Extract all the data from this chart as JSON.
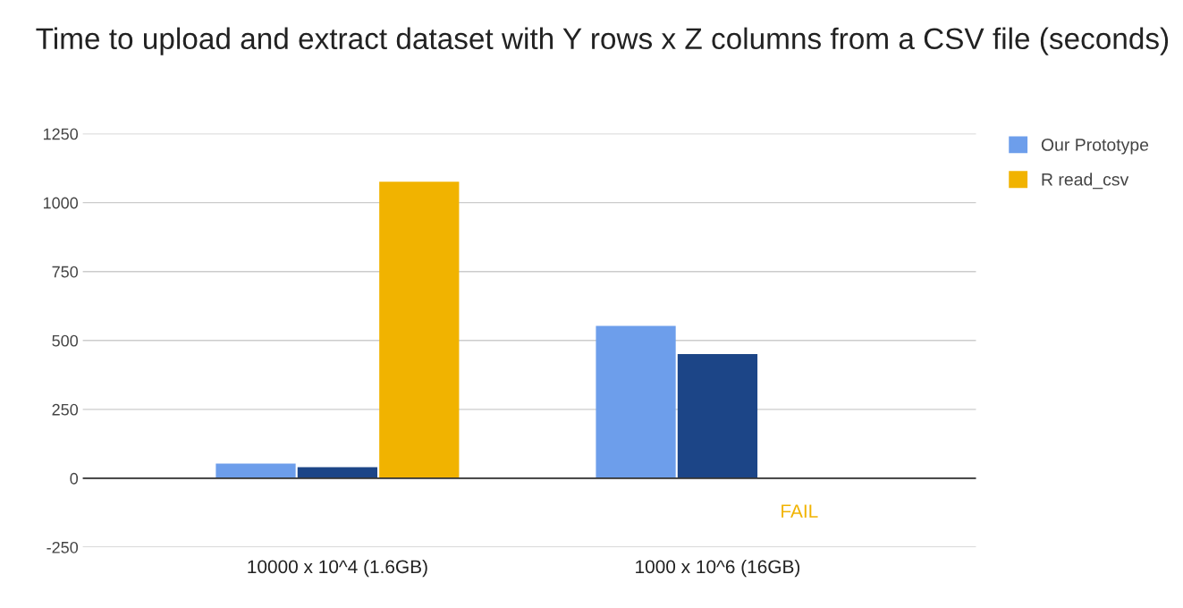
{
  "chart_data": {
    "type": "bar",
    "title": "Time to upload and extract dataset with Y rows x Z columns from a CSV file (seconds)",
    "categories": [
      "10000 x 10^4 (1.6GB)",
      "1000 x 10^6 (16GB)"
    ],
    "series": [
      {
        "name": "Our Prototype",
        "color": "#6d9eeb",
        "values": [
          53,
          553
        ]
      },
      {
        "color": "#1c4587",
        "values": [
          40,
          451
        ]
      },
      {
        "name": "R read_csv",
        "color": "#f1b300",
        "values": [
          1076,
          null
        ]
      }
    ],
    "ylim": [
      -250,
      1250
    ],
    "yticks": [
      -250,
      0,
      250,
      500,
      750,
      1000,
      1250
    ],
    "grid": "y",
    "legend": "top right",
    "annotations": [
      "FAIL"
    ]
  }
}
